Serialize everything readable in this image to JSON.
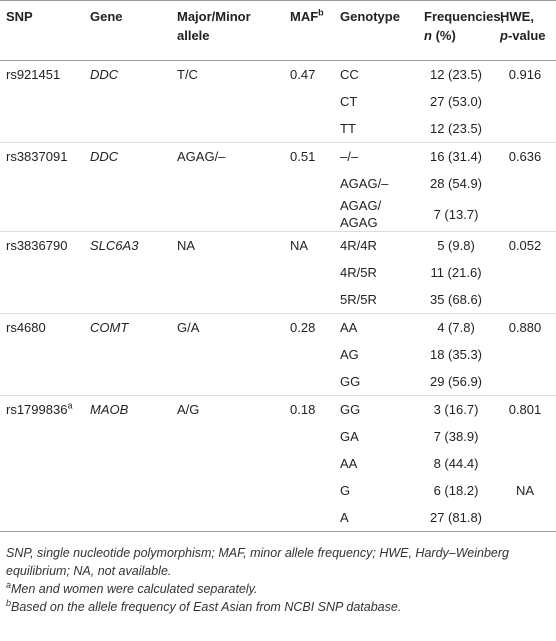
{
  "table": {
    "header": {
      "snp": "SNP",
      "gene": "Gene",
      "alleles": "Major/Minor allele",
      "maf": "MAF",
      "maf_note": "b",
      "genotype": "Genotype",
      "frequencies": "Frequencies,",
      "frequencies_n": "n",
      "frequencies_unit": "(%)",
      "hwe": "HWE,",
      "hwe_p": "p",
      "hwe_rest": "-value"
    },
    "groups": [
      {
        "snp": "rs921451",
        "gene": "DDC",
        "alleles": "T/C",
        "maf": "0.47",
        "rows": [
          {
            "genotype": "CC",
            "frequency": "12 (23.5)",
            "hwe": "0.916"
          },
          {
            "genotype": "CT",
            "frequency": "27 (53.0)",
            "hwe": null
          },
          {
            "genotype": "TT",
            "frequency": "12 (23.5)",
            "hwe": null
          }
        ]
      },
      {
        "snp": "rs3837091",
        "gene": "DDC",
        "alleles": "AGAG/–",
        "maf": "0.51",
        "rows": [
          {
            "genotype": "–/–",
            "frequency": "16 (31.4)",
            "hwe": "0.636"
          },
          {
            "genotype": "AGAG/–",
            "frequency": "28 (54.9)",
            "hwe": null
          },
          {
            "genotype": "AGAG/ AGAG",
            "frequency": "7 (13.7)",
            "hwe": null
          }
        ]
      },
      {
        "snp": "rs3836790",
        "gene": "SLC6A3",
        "alleles": "NA",
        "maf": "NA",
        "rows": [
          {
            "genotype": "4R/4R",
            "frequency": "5 (9.8)",
            "hwe": "0.052"
          },
          {
            "genotype": "4R/5R",
            "frequency": "11 (21.6)",
            "hwe": null
          },
          {
            "genotype": "5R/5R",
            "frequency": "35 (68.6)",
            "hwe": null
          }
        ]
      },
      {
        "snp": "rs4680",
        "gene": "COMT",
        "alleles": "G/A",
        "maf": "0.28",
        "rows": [
          {
            "genotype": "AA",
            "frequency": "4 (7.8)",
            "hwe": "0.880"
          },
          {
            "genotype": "AG",
            "frequency": "18 (35.3)",
            "hwe": null
          },
          {
            "genotype": "GG",
            "frequency": "29 (56.9)",
            "hwe": null
          }
        ]
      },
      {
        "snp": "rs1799836",
        "snp_note": "a",
        "gene": "MAOB",
        "alleles": "A/G",
        "maf": "0.18",
        "rows": [
          {
            "genotype": "GG",
            "frequency": "3 (16.7)",
            "hwe": "0.801"
          },
          {
            "genotype": "GA",
            "frequency": "7 (38.9)",
            "hwe": null
          },
          {
            "genotype": "AA",
            "frequency": "8 (44.4)",
            "hwe": null
          },
          {
            "genotype": "G",
            "frequency": "6 (18.2)",
            "hwe": "NA"
          },
          {
            "genotype": "A",
            "frequency": "27 (81.8)",
            "hwe": null
          }
        ]
      }
    ]
  },
  "notes": {
    "abbreviations": "SNP, single nucleotide polymorphism; MAF, minor allele frequency; HWE, Hardy–Weinberg equilibrium; NA, not available.",
    "footnotes": [
      {
        "mark": "a",
        "text": "Men and women were calculated separately."
      },
      {
        "mark": "b",
        "text": "Based on the allele frequency of East Asian from NCBI SNP database."
      }
    ]
  }
}
